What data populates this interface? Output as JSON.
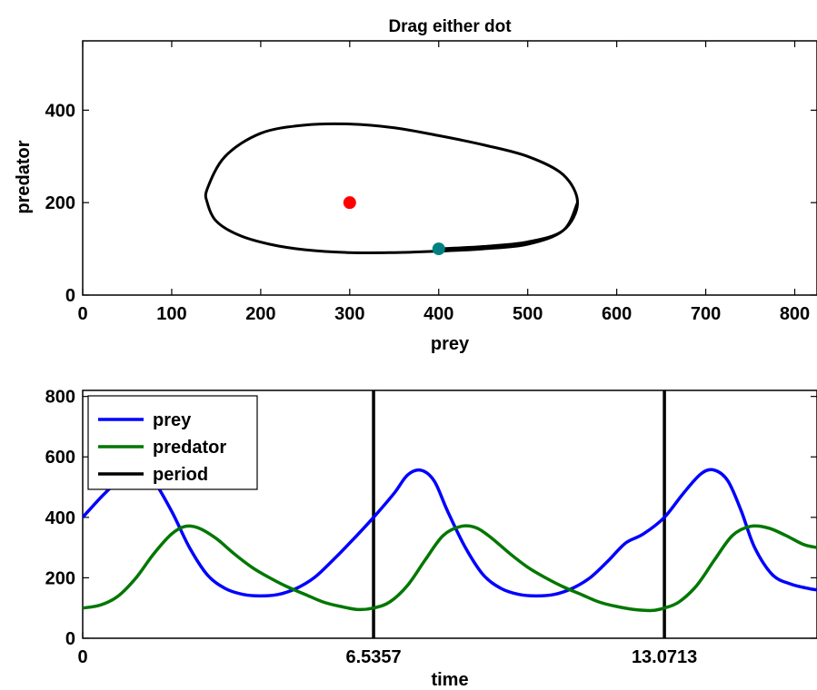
{
  "chart_data": [
    {
      "id": "phase",
      "type": "line",
      "title": "Drag either dot",
      "xlabel": "prey",
      "ylabel": "predator",
      "xlim": [
        0,
        825
      ],
      "ylim": [
        0,
        550
      ],
      "xticks": [
        0,
        100,
        200,
        300,
        400,
        500,
        600,
        700,
        800
      ],
      "yticks": [
        0,
        200,
        400
      ],
      "grid": false,
      "orbit": {
        "x": [
          400,
          450,
          500,
          540,
          556,
          540,
          500,
          450,
          400,
          350,
          300,
          250,
          200,
          160,
          140,
          140,
          150,
          175,
          210,
          250,
          300,
          350,
          400,
          450,
          500,
          540,
          556
        ],
        "y": [
          100,
          105,
          115,
          140,
          200,
          260,
          300,
          325,
          345,
          362,
          370,
          368,
          350,
          300,
          230,
          200,
          160,
          130,
          110,
          98,
          92,
          92,
          95,
          100,
          110,
          140,
          200
        ]
      },
      "equilibrium_point": {
        "x": 300,
        "y": 200,
        "color": "#ff0000"
      },
      "initial_point": {
        "x": 400,
        "y": 100,
        "color": "#008080"
      }
    },
    {
      "id": "timeseries",
      "type": "line",
      "title": "",
      "xlabel": "time",
      "ylabel": "",
      "xlim": [
        0,
        16.5
      ],
      "ylim": [
        0,
        820
      ],
      "xticks": [
        0,
        6.5357,
        13.0713
      ],
      "xtick_labels": [
        "0",
        "6.5357",
        "13.0713"
      ],
      "yticks": [
        0,
        200,
        400,
        600,
        800
      ],
      "grid": false,
      "legend": "top-left",
      "period_lines": [
        6.5357,
        13.0713
      ],
      "series": [
        {
          "name": "prey",
          "color": "#0000ff",
          "x": [
            0,
            0.5,
            1.0,
            1.3,
            1.6,
            2.0,
            2.4,
            2.8,
            3.2,
            3.6,
            4.0,
            4.4,
            4.8,
            5.2,
            5.6,
            6.0,
            6.5357,
            7.0,
            7.3,
            7.6,
            7.9,
            8.2,
            8.6,
            9.0,
            9.4,
            9.8,
            10.2,
            10.6,
            11.0,
            11.4,
            11.8,
            12.2,
            12.6,
            13.0713,
            13.5,
            13.9,
            14.2,
            14.5,
            14.8,
            15.1,
            15.5,
            15.9,
            16.3,
            16.5
          ],
          "y": [
            400,
            480,
            545,
            556,
            520,
            420,
            300,
            210,
            165,
            145,
            140,
            145,
            165,
            200,
            255,
            315,
            400,
            480,
            540,
            556,
            520,
            420,
            300,
            210,
            165,
            145,
            140,
            145,
            165,
            200,
            255,
            315,
            345,
            400,
            480,
            545,
            556,
            520,
            420,
            300,
            210,
            180,
            165,
            160
          ]
        },
        {
          "name": "predator",
          "color": "#007700",
          "x": [
            0,
            0.4,
            0.8,
            1.2,
            1.6,
            2.0,
            2.3,
            2.6,
            3.0,
            3.4,
            3.8,
            4.2,
            4.6,
            5.0,
            5.4,
            5.8,
            6.2,
            6.5357,
            6.9,
            7.3,
            7.7,
            8.1,
            8.5,
            8.85,
            9.2,
            9.6,
            10.0,
            10.4,
            10.8,
            11.2,
            11.6,
            12.0,
            12.4,
            12.8,
            13.0713,
            13.4,
            13.8,
            14.2,
            14.6,
            15.0,
            15.4,
            15.8,
            16.2,
            16.5
          ],
          "y": [
            100,
            110,
            140,
            200,
            280,
            345,
            370,
            365,
            330,
            280,
            235,
            200,
            170,
            145,
            120,
            105,
            95,
            100,
            120,
            175,
            260,
            340,
            370,
            365,
            330,
            280,
            235,
            200,
            170,
            145,
            120,
            105,
            95,
            92,
            100,
            120,
            175,
            260,
            340,
            370,
            365,
            340,
            310,
            300
          ]
        },
        {
          "name": "period",
          "color": "#000000",
          "x": [],
          "y": []
        }
      ]
    }
  ]
}
